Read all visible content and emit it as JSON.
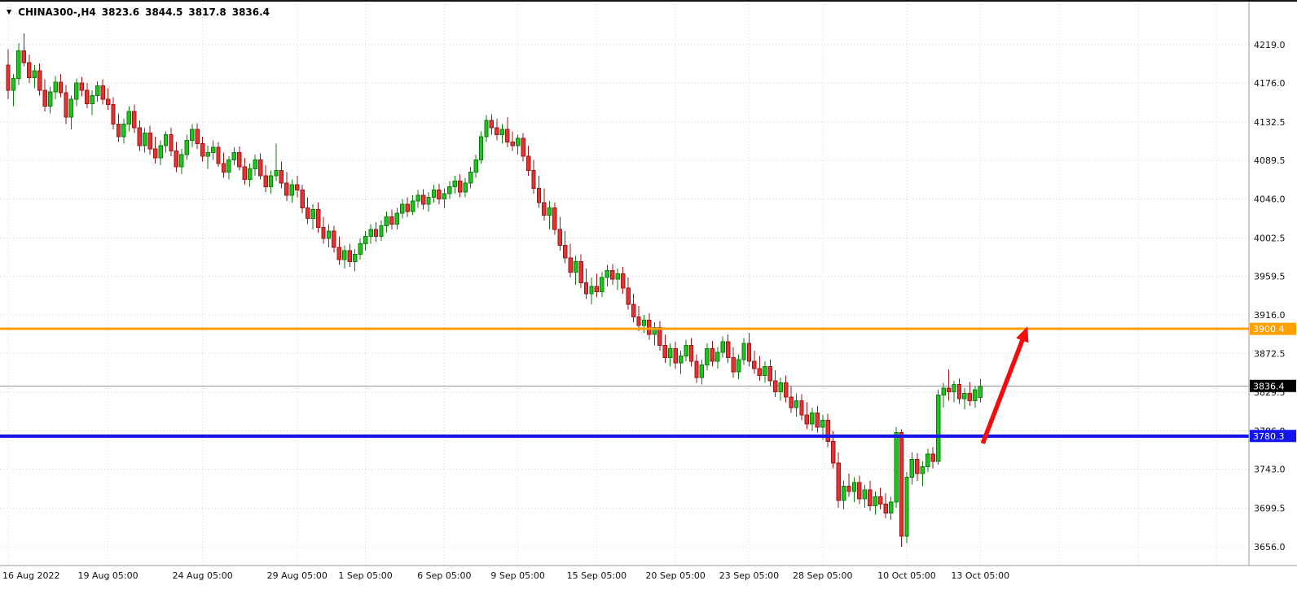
{
  "header": {
    "symbol_period": "CHINA300-,H4",
    "open": "3823.6",
    "high": "3844.5",
    "low": "3817.8",
    "close": "3836.4"
  },
  "icons": {
    "collapse": "▼"
  },
  "colors": {
    "bull_fill": "#1fc41f",
    "bull_border": "#0b7d0b",
    "bear_fill": "#e43333",
    "bear_border": "#9e1515",
    "grid": "#d4d4d4",
    "axis_text": "#111111",
    "resistance": "#ffa000",
    "support": "#1414f0",
    "current_tag_bg": "#000000",
    "tag_text": "#ffffff",
    "current_line": "#9a9a9a",
    "arrow": "#f20c0c",
    "border": "#9a9a9a",
    "top_border": "#111111"
  },
  "chart_data": {
    "type": "candlestick",
    "title": "CHINA300-,H4",
    "symbol": "CHINA300-",
    "timeframe": "H4",
    "grid": "dotted",
    "ylim": [
      3656.0,
      4219.0
    ],
    "last_bar": {
      "open": 3823.6,
      "high": 3844.5,
      "low": 3817.8,
      "close": 3836.4
    },
    "price_axis": {
      "side": "right",
      "ticks": [
        {
          "value": 4219.0,
          "label": "4219.0"
        },
        {
          "value": 4176.0,
          "label": "4176.0"
        },
        {
          "value": 4132.5,
          "label": "4132.5"
        },
        {
          "value": 4089.5,
          "label": "4089.5"
        },
        {
          "value": 4046.0,
          "label": "4046.0"
        },
        {
          "value": 4002.5,
          "label": "4002.5"
        },
        {
          "value": 3959.5,
          "label": "3959.5"
        },
        {
          "value": 3916.0,
          "label": "3916.0"
        },
        {
          "value": 3872.5,
          "label": "3872.5"
        },
        {
          "value": 3829.5,
          "label": "3829.5"
        },
        {
          "value": 3786.0,
          "label": "3786.0"
        },
        {
          "value": 3743.0,
          "label": "3743.0"
        },
        {
          "value": 3699.5,
          "label": "3699.5"
        },
        {
          "value": 3656.0,
          "label": "3656.0"
        }
      ]
    },
    "time_axis": {
      "ticks": [
        {
          "i": 0,
          "label": "16 Aug 2022"
        },
        {
          "i": 19,
          "label": "19 Aug 05:00"
        },
        {
          "i": 37,
          "label": "24 Aug 05:00"
        },
        {
          "i": 55,
          "label": "29 Aug 05:00"
        },
        {
          "i": 68,
          "label": "1 Sep 05:00"
        },
        {
          "i": 83,
          "label": "6 Sep 05:00"
        },
        {
          "i": 97,
          "label": "9 Sep 05:00"
        },
        {
          "i": 112,
          "label": "15 Sep 05:00"
        },
        {
          "i": 127,
          "label": "20 Sep 05:00"
        },
        {
          "i": 141,
          "label": "23 Sep 05:00"
        },
        {
          "i": 155,
          "label": "28 Sep 05:00"
        },
        {
          "i": 171,
          "label": "10 Oct 05:00"
        },
        {
          "i": 185,
          "label": "13 Oct 05:00"
        },
        {
          "i": 200,
          "label": ""
        },
        {
          "i": 215,
          "label": ""
        },
        {
          "i": 230,
          "label": ""
        }
      ]
    },
    "hlines": [
      {
        "name": "resistance",
        "price": 3900.4,
        "label": "3900.4"
      },
      {
        "name": "support",
        "price": 3780.3,
        "label": "3780.3"
      }
    ],
    "current_price": {
      "value": 3836.4,
      "label": "3836.4"
    },
    "arrow": {
      "name": "bullish-projection-arrow",
      "from": {
        "index": 185,
        "price": 3772
      },
      "to": {
        "index": 194,
        "price": 3903
      }
    },
    "candles": [
      [
        4196,
        4214,
        4158,
        4168
      ],
      [
        4168,
        4186,
        4150,
        4181
      ],
      [
        4181,
        4221,
        4174,
        4212
      ],
      [
        4212,
        4232,
        4195,
        4199
      ],
      [
        4199,
        4208,
        4176,
        4182
      ],
      [
        4182,
        4196,
        4170,
        4190
      ],
      [
        4190,
        4198,
        4162,
        4168
      ],
      [
        4168,
        4180,
        4144,
        4150
      ],
      [
        4150,
        4172,
        4142,
        4166
      ],
      [
        4166,
        4184,
        4158,
        4177
      ],
      [
        4177,
        4186,
        4160,
        4165
      ],
      [
        4165,
        4174,
        4130,
        4138
      ],
      [
        4138,
        4162,
        4124,
        4158
      ],
      [
        4158,
        4181,
        4150,
        4176
      ],
      [
        4176,
        4183,
        4161,
        4168
      ],
      [
        4168,
        4176,
        4148,
        4153
      ],
      [
        4153,
        4168,
        4140,
        4162
      ],
      [
        4162,
        4178,
        4155,
        4173
      ],
      [
        4173,
        4180,
        4152,
        4158
      ],
      [
        4158,
        4170,
        4146,
        4152
      ],
      [
        4152,
        4160,
        4124,
        4130
      ],
      [
        4130,
        4142,
        4110,
        4116
      ],
      [
        4116,
        4136,
        4108,
        4130
      ],
      [
        4130,
        4150,
        4122,
        4144
      ],
      [
        4144,
        4152,
        4120,
        4126
      ],
      [
        4126,
        4134,
        4100,
        4106
      ],
      [
        4106,
        4126,
        4098,
        4120
      ],
      [
        4120,
        4128,
        4096,
        4102
      ],
      [
        4102,
        4116,
        4086,
        4092
      ],
      [
        4092,
        4112,
        4084,
        4106
      ],
      [
        4106,
        4122,
        4098,
        4118
      ],
      [
        4118,
        4126,
        4094,
        4100
      ],
      [
        4100,
        4110,
        4076,
        4082
      ],
      [
        4082,
        4102,
        4074,
        4096
      ],
      [
        4096,
        4118,
        4090,
        4112
      ],
      [
        4112,
        4130,
        4104,
        4124
      ],
      [
        4124,
        4131,
        4102,
        4108
      ],
      [
        4108,
        4116,
        4088,
        4094
      ],
      [
        4094,
        4106,
        4080,
        4098
      ],
      [
        4098,
        4112,
        4090,
        4104
      ],
      [
        4104,
        4110,
        4082,
        4086
      ],
      [
        4086,
        4098,
        4070,
        4076
      ],
      [
        4076,
        4094,
        4068,
        4090
      ],
      [
        4090,
        4104,
        4084,
        4098
      ],
      [
        4098,
        4105,
        4078,
        4082
      ],
      [
        4082,
        4092,
        4062,
        4068
      ],
      [
        4068,
        4086,
        4060,
        4080
      ],
      [
        4080,
        4096,
        4072,
        4090
      ],
      [
        4090,
        4097,
        4068,
        4072
      ],
      [
        4072,
        4084,
        4054,
        4060
      ],
      [
        4060,
        4078,
        4052,
        4072
      ],
      [
        4072,
        4108,
        4066,
        4078
      ],
      [
        4078,
        4088,
        4058,
        4064
      ],
      [
        4064,
        4076,
        4044,
        4050
      ],
      [
        4050,
        4068,
        4042,
        4062
      ],
      [
        4062,
        4072,
        4048,
        4056
      ],
      [
        4056,
        4062,
        4030,
        4036
      ],
      [
        4036,
        4048,
        4018,
        4024
      ],
      [
        4024,
        4040,
        4012,
        4034
      ],
      [
        4034,
        4042,
        4008,
        4014
      ],
      [
        4014,
        4026,
        3996,
        4002
      ],
      [
        4002,
        4018,
        3992,
        4010
      ],
      [
        4010,
        4016,
        3986,
        3992
      ],
      [
        3992,
        4004,
        3972,
        3978
      ],
      [
        3978,
        3994,
        3968,
        3988
      ],
      [
        3988,
        3996,
        3970,
        3976
      ],
      [
        3976,
        3990,
        3965,
        3984
      ],
      [
        3984,
        4002,
        3978,
        3996
      ],
      [
        3996,
        4010,
        3988,
        4004
      ],
      [
        4004,
        4018,
        3996,
        4012
      ],
      [
        4012,
        4020,
        3998,
        4004
      ],
      [
        4004,
        4022,
        3999,
        4016
      ],
      [
        4016,
        4032,
        4008,
        4026
      ],
      [
        4026,
        4034,
        4012,
        4018
      ],
      [
        4018,
        4036,
        4012,
        4030
      ],
      [
        4030,
        4046,
        4024,
        4040
      ],
      [
        4040,
        4048,
        4026,
        4032
      ],
      [
        4032,
        4050,
        4028,
        4044
      ],
      [
        4044,
        4056,
        4036,
        4050
      ],
      [
        4050,
        4057,
        4034,
        4040
      ],
      [
        4040,
        4054,
        4032,
        4048
      ],
      [
        4048,
        4062,
        4042,
        4056
      ],
      [
        4056,
        4063,
        4040,
        4046
      ],
      [
        4046,
        4058,
        4036,
        4052
      ],
      [
        4052,
        4066,
        4046,
        4060
      ],
      [
        4060,
        4072,
        4052,
        4066
      ],
      [
        4066,
        4074,
        4048,
        4054
      ],
      [
        4054,
        4070,
        4048,
        4064
      ],
      [
        4064,
        4082,
        4058,
        4076
      ],
      [
        4076,
        4096,
        4070,
        4090
      ],
      [
        4090,
        4122,
        4086,
        4116
      ],
      [
        4116,
        4140,
        4110,
        4134
      ],
      [
        4134,
        4141,
        4118,
        4126
      ],
      [
        4126,
        4136,
        4112,
        4118
      ],
      [
        4118,
        4130,
        4108,
        4124
      ],
      [
        4124,
        4138,
        4104,
        4110
      ],
      [
        4110,
        4122,
        4100,
        4106
      ],
      [
        4106,
        4118,
        4096,
        4114
      ],
      [
        4114,
        4120,
        4088,
        4094
      ],
      [
        4094,
        4106,
        4072,
        4078
      ],
      [
        4078,
        4090,
        4052,
        4058
      ],
      [
        4058,
        4072,
        4036,
        4042
      ],
      [
        4042,
        4058,
        4022,
        4028
      ],
      [
        4028,
        4044,
        4012,
        4036
      ],
      [
        4036,
        4042,
        4006,
        4012
      ],
      [
        4012,
        4026,
        3988,
        3994
      ],
      [
        3994,
        4010,
        3974,
        3980
      ],
      [
        3980,
        3996,
        3958,
        3964
      ],
      [
        3964,
        3982,
        3950,
        3976
      ],
      [
        3976,
        3984,
        3946,
        3952
      ],
      [
        3952,
        3968,
        3934,
        3940
      ],
      [
        3940,
        3958,
        3928,
        3948
      ],
      [
        3948,
        3962,
        3936,
        3942
      ],
      [
        3942,
        3964,
        3936,
        3958
      ],
      [
        3958,
        3972,
        3948,
        3966
      ],
      [
        3966,
        3973,
        3950,
        3956
      ],
      [
        3956,
        3968,
        3944,
        3962
      ],
      [
        3962,
        3970,
        3940,
        3946
      ],
      [
        3946,
        3958,
        3922,
        3928
      ],
      [
        3928,
        3940,
        3908,
        3914
      ],
      [
        3914,
        3926,
        3898,
        3904
      ],
      [
        3904,
        3916,
        3896,
        3910
      ],
      [
        3910,
        3918,
        3888,
        3894
      ],
      [
        3894,
        3908,
        3882,
        3902
      ],
      [
        3902,
        3909,
        3876,
        3882
      ],
      [
        3882,
        3894,
        3862,
        3868
      ],
      [
        3868,
        3884,
        3858,
        3878
      ],
      [
        3878,
        3886,
        3856,
        3862
      ],
      [
        3862,
        3876,
        3850,
        3870
      ],
      [
        3870,
        3888,
        3864,
        3882
      ],
      [
        3882,
        3890,
        3858,
        3864
      ],
      [
        3864,
        3872,
        3840,
        3846
      ],
      [
        3846,
        3866,
        3838,
        3860
      ],
      [
        3860,
        3884,
        3854,
        3878
      ],
      [
        3878,
        3887,
        3858,
        3864
      ],
      [
        3864,
        3880,
        3856,
        3874
      ],
      [
        3874,
        3892,
        3868,
        3886
      ],
      [
        3886,
        3894,
        3862,
        3868
      ],
      [
        3868,
        3880,
        3846,
        3852
      ],
      [
        3852,
        3872,
        3844,
        3866
      ],
      [
        3866,
        3890,
        3860,
        3884
      ],
      [
        3884,
        3896,
        3858,
        3864
      ],
      [
        3864,
        3876,
        3850,
        3856
      ],
      [
        3856,
        3870,
        3842,
        3848
      ],
      [
        3848,
        3864,
        3840,
        3858
      ],
      [
        3858,
        3866,
        3836,
        3842
      ],
      [
        3842,
        3854,
        3824,
        3830
      ],
      [
        3830,
        3846,
        3820,
        3840
      ],
      [
        3840,
        3848,
        3818,
        3824
      ],
      [
        3824,
        3836,
        3806,
        3812
      ],
      [
        3812,
        3828,
        3802,
        3820
      ],
      [
        3820,
        3827,
        3798,
        3804
      ],
      [
        3804,
        3818,
        3788,
        3794
      ],
      [
        3794,
        3812,
        3786,
        3806
      ],
      [
        3806,
        3814,
        3784,
        3790
      ],
      [
        3790,
        3804,
        3776,
        3798
      ],
      [
        3798,
        3805,
        3768,
        3774
      ],
      [
        3774,
        3786,
        3744,
        3750
      ],
      [
        3750,
        3762,
        3700,
        3708
      ],
      [
        3708,
        3730,
        3698,
        3724
      ],
      [
        3724,
        3738,
        3712,
        3718
      ],
      [
        3718,
        3734,
        3706,
        3728
      ],
      [
        3728,
        3736,
        3704,
        3710
      ],
      [
        3710,
        3726,
        3700,
        3720
      ],
      [
        3720,
        3730,
        3696,
        3702
      ],
      [
        3702,
        3718,
        3692,
        3712
      ],
      [
        3712,
        3722,
        3698,
        3704
      ],
      [
        3704,
        3716,
        3688,
        3694
      ],
      [
        3694,
        3712,
        3686,
        3706
      ],
      [
        3706,
        3790,
        3700,
        3784
      ],
      [
        3784,
        3788,
        3656,
        3668
      ],
      [
        3668,
        3740,
        3660,
        3734
      ],
      [
        3734,
        3762,
        3726,
        3754
      ],
      [
        3754,
        3761,
        3730,
        3738
      ],
      [
        3738,
        3752,
        3724,
        3746
      ],
      [
        3746,
        3766,
        3740,
        3760
      ],
      [
        3760,
        3768,
        3744,
        3752
      ],
      [
        3752,
        3832,
        3748,
        3826
      ],
      [
        3826,
        3840,
        3812,
        3834
      ],
      [
        3834,
        3855,
        3820,
        3830
      ],
      [
        3830,
        3842,
        3818,
        3838
      ],
      [
        3838,
        3845,
        3816,
        3822
      ],
      [
        3822,
        3834,
        3810,
        3828
      ],
      [
        3828,
        3841,
        3814,
        3820
      ],
      [
        3820,
        3836,
        3812,
        3832
      ],
      [
        3823.6,
        3844.5,
        3817.8,
        3836.4
      ]
    ]
  }
}
